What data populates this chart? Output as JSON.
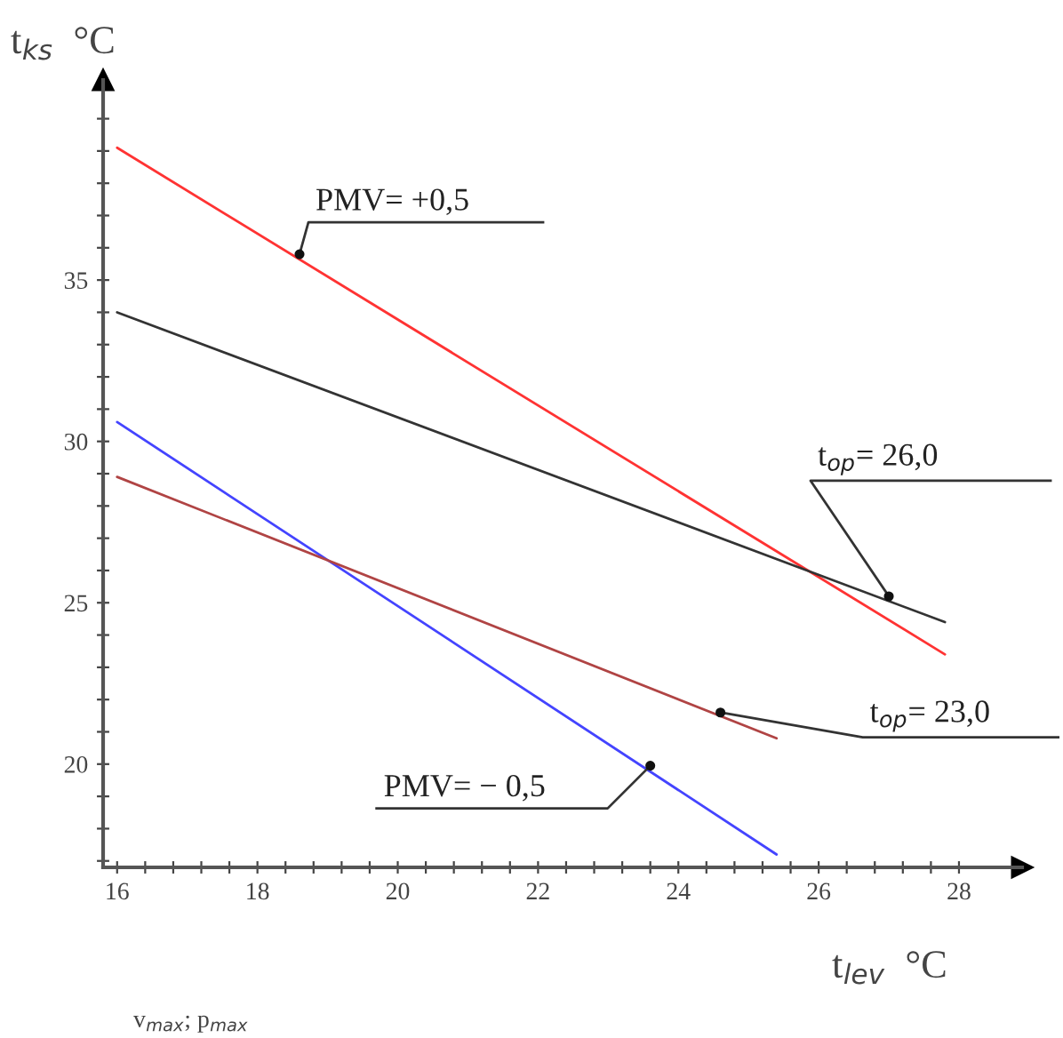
{
  "chart_data": {
    "type": "line",
    "xlabel": "t$_{lev}$  °C",
    "ylabel": "t$_{ks}$  °C",
    "series": [
      {
        "color": "#ff3333",
        "x": [
          16,
          27.8
        ],
        "values": [
          39.1,
          23.4
        ]
      },
      {
        "color": "#333333",
        "x": [
          16,
          27.8
        ],
        "values": [
          34.0,
          24.4
        ]
      },
      {
        "color": "#4444ff",
        "x": [
          16,
          25.4
        ],
        "values": [
          30.6,
          17.2
        ]
      },
      {
        "color": "#b04444",
        "x": [
          16,
          25.4
        ],
        "values": [
          28.9,
          20.8
        ]
      }
    ],
    "xlim": [
      15.8,
      28.9
    ],
    "ylim": [
      16.8,
      41.2
    ],
    "xticks": [
      16,
      {
        "value": 16.4,
        "label": null
      },
      {
        "value": 16.8,
        "label": null
      },
      {
        "value": 17.2,
        "label": null
      },
      {
        "value": 17.6,
        "label": null
      },
      18,
      {
        "value": 18.4,
        "label": null
      },
      {
        "value": 18.8,
        "label": null
      },
      {
        "value": 19.2,
        "label": null
      },
      {
        "value": 19.6,
        "label": null
      },
      20,
      {
        "value": 20.4,
        "label": null
      },
      {
        "value": 20.8,
        "label": null
      },
      {
        "value": 21.2,
        "label": null
      },
      {
        "value": 21.6,
        "label": null
      },
      22,
      {
        "value": 22.4,
        "label": null
      },
      {
        "value": 22.8,
        "label": null
      },
      {
        "value": 23.2,
        "label": null
      },
      {
        "value": 23.6,
        "label": null
      },
      24,
      {
        "value": 24.4,
        "label": null
      },
      {
        "value": 24.8,
        "label": null
      },
      {
        "value": 25.2,
        "label": null
      },
      {
        "value": 25.6,
        "label": null
      },
      26,
      {
        "value": 26.4,
        "label": null
      },
      {
        "value": 26.8,
        "label": null
      },
      {
        "value": 27.2,
        "label": null
      },
      {
        "value": 27.6,
        "label": null
      },
      28
    ],
    "yticks": [
      {
        "value": 17,
        "label": null
      },
      {
        "value": 18,
        "label": null
      },
      {
        "value": 19,
        "label": null
      },
      20,
      {
        "value": 21,
        "label": null
      },
      {
        "value": 22,
        "label": null
      },
      {
        "value": 23,
        "label": null
      },
      {
        "value": 24,
        "label": null
      },
      25,
      {
        "value": 26,
        "label": null
      },
      {
        "value": 27,
        "label": null
      },
      {
        "value": 28,
        "label": null
      },
      {
        "value": 29,
        "label": null
      },
      30,
      {
        "value": 31,
        "label": null
      },
      {
        "value": 32,
        "label": null
      },
      {
        "value": 33,
        "label": null
      },
      {
        "value": 34,
        "label": null
      },
      35,
      {
        "value": 36,
        "label": null
      },
      {
        "value": 37,
        "label": null
      },
      {
        "value": 38,
        "label": null
      },
      {
        "value": 39,
        "label": null
      },
      {
        "value": 40,
        "label": null
      }
    ],
    "grid": false,
    "marker": "none",
    "line_style": "solid",
    "annotations": [
      {
        "text": "PMV= +0,5",
        "x": 18.6,
        "y": 35.8
      },
      {
        "text": "t$_{op}$= 26,0",
        "x": 27.0,
        "y": 25.2
      },
      {
        "text": "t$_{op}$= 23,0",
        "x": 24.6,
        "y": 21.6
      },
      {
        "text": "PMV= − 0,5",
        "x": 23.6,
        "y": 19.95
      },
      "v$_{max}$; p$_{max}$"
    ]
  }
}
